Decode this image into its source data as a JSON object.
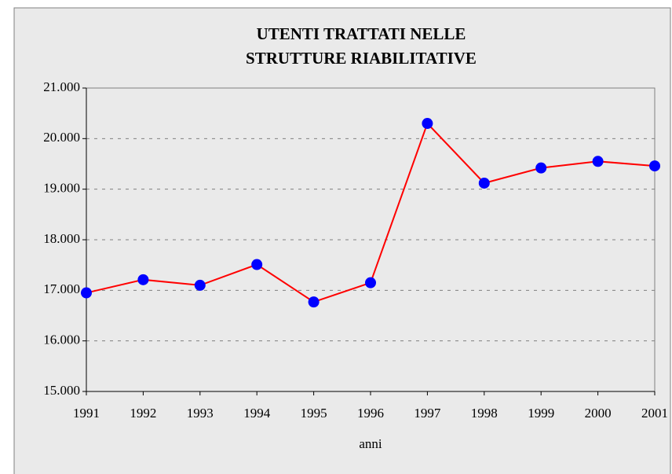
{
  "chart_data": {
    "type": "line",
    "title": [
      "UTENTI TRATTATI NELLE",
      "STRUTTURE RIABILITATIVE"
    ],
    "x_label": "anni",
    "categories": [
      "1991",
      "1992",
      "1993",
      "1994",
      "1995",
      "1996",
      "1997",
      "1998",
      "1999",
      "2000",
      "2001"
    ],
    "series": [
      {
        "name": null,
        "color": "#ff0000",
        "marker_color": "#0000ff",
        "values": [
          16950,
          17210,
          17100,
          17510,
          16770,
          17150,
          20300,
          19120,
          19420,
          19550,
          19460
        ]
      }
    ],
    "ylim": [
      15000,
      21000
    ],
    "yticks": [
      {
        "value": 15000,
        "label": "15.000"
      },
      {
        "value": 16000,
        "label": "16.000"
      },
      {
        "value": 17000,
        "label": "17.000"
      },
      {
        "value": 18000,
        "label": "18.000"
      },
      {
        "value": 19000,
        "label": "19.000"
      },
      {
        "value": 20000,
        "label": "20.000"
      },
      {
        "value": 21000,
        "label": "21.000"
      }
    ],
    "grid": true
  }
}
